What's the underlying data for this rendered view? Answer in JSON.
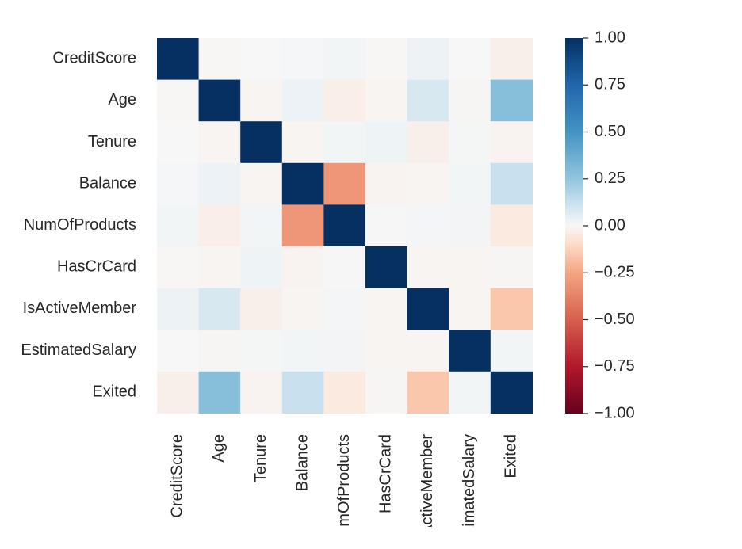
{
  "chart_data": {
    "type": "heatmap",
    "title": "",
    "xlabel": "",
    "ylabel": "",
    "row_labels": [
      "CreditScore",
      "Age",
      "Tenure",
      "Balance",
      "NumOfProducts",
      "HasCrCard",
      "IsActiveMember",
      "EstimatedSalary",
      "Exited"
    ],
    "col_labels": [
      "CreditScore",
      "Age",
      "Tenure",
      "Balance",
      "NumOfProducts",
      "HasCrCard",
      "IsActiveMember",
      "EstimatedSalary",
      "Exited"
    ],
    "values": [
      [
        1.0,
        -0.004,
        0.001,
        0.006,
        0.012,
        -0.005,
        0.026,
        -0.001,
        -0.027
      ],
      [
        -0.004,
        1.0,
        -0.01,
        0.028,
        -0.031,
        -0.012,
        0.085,
        -0.007,
        0.285
      ],
      [
        0.001,
        -0.01,
        1.0,
        -0.012,
        0.013,
        0.023,
        -0.028,
        0.008,
        -0.014
      ],
      [
        0.006,
        0.028,
        -0.012,
        1.0,
        -0.304,
        -0.015,
        -0.01,
        0.013,
        0.119
      ],
      [
        0.012,
        -0.031,
        0.013,
        -0.304,
        1.0,
        0.003,
        0.01,
        0.014,
        -0.048
      ],
      [
        -0.005,
        -0.012,
        0.023,
        -0.015,
        0.003,
        1.0,
        -0.012,
        -0.01,
        -0.007
      ],
      [
        0.026,
        0.085,
        -0.028,
        -0.01,
        0.01,
        -0.012,
        1.0,
        -0.011,
        -0.156
      ],
      [
        -0.001,
        -0.007,
        0.008,
        0.013,
        0.014,
        -0.01,
        -0.011,
        1.0,
        0.012
      ],
      [
        -0.027,
        0.285,
        -0.014,
        0.119,
        -0.048,
        -0.007,
        -0.156,
        0.012,
        1.0
      ]
    ],
    "colorbar": {
      "colormap": "RdBu",
      "range": [
        -1.0,
        1.0
      ],
      "ticks": [
        "1.00",
        "0.75",
        "0.50",
        "0.25",
        "0.00",
        "−0.25",
        "−0.50",
        "−0.75",
        "−1.00"
      ],
      "tick_values": [
        1.0,
        0.75,
        0.5,
        0.25,
        0.0,
        -0.25,
        -0.5,
        -0.75,
        -1.0
      ]
    },
    "grid": false,
    "legend": "colorbar-right"
  }
}
